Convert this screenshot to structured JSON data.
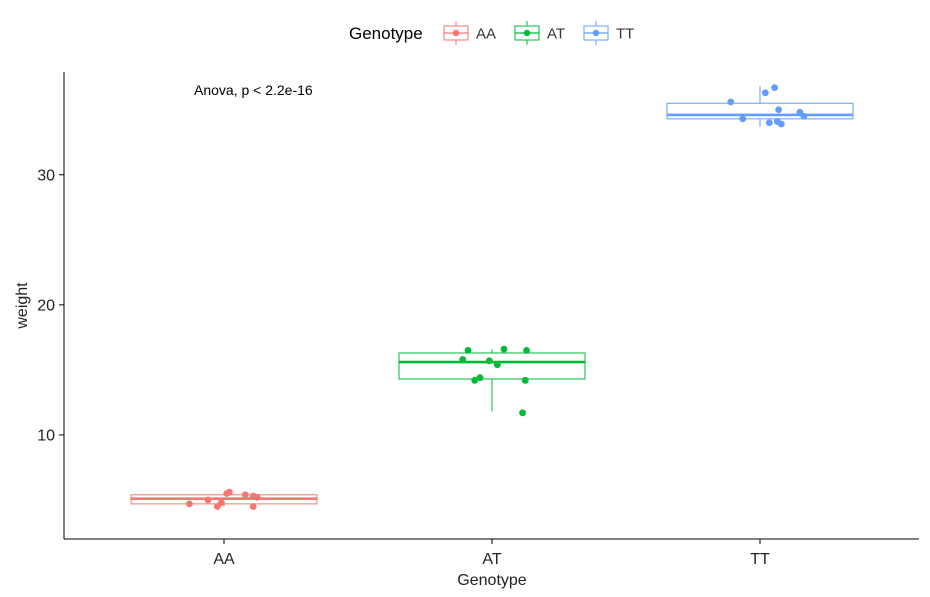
{
  "chart_data": {
    "type": "box",
    "xlabel": "Genotype",
    "ylabel": "weight",
    "categories": [
      "AA",
      "AT",
      "TT"
    ],
    "ylim": [
      2.0,
      37.9
    ],
    "yticks": [
      10,
      20,
      30
    ],
    "ytick_labels": [
      "10",
      "20",
      "30"
    ],
    "grid": false,
    "legend": {
      "title": "Genotype",
      "position": "top"
    },
    "annotation": "Anova, p < 2.2e-16",
    "series": [
      {
        "name": "AA",
        "color": "#F8766D",
        "box": {
          "min": 4.5,
          "q1": 4.7,
          "median": 5.1,
          "q3": 5.4,
          "max": 5.6
        },
        "points": [
          {
            "x": -0.26,
            "y": 4.7
          },
          {
            "x": -0.12,
            "y": 5.0
          },
          {
            "x": -0.05,
            "y": 4.5
          },
          {
            "x": -0.02,
            "y": 4.8
          },
          {
            "x": 0.02,
            "y": 5.5
          },
          {
            "x": 0.04,
            "y": 5.6
          },
          {
            "x": 0.16,
            "y": 5.4
          },
          {
            "x": 0.22,
            "y": 4.5
          },
          {
            "x": 0.22,
            "y": 5.3
          },
          {
            "x": 0.25,
            "y": 5.2
          }
        ]
      },
      {
        "name": "AT",
        "color": "#00BA38",
        "box": {
          "min": 11.8,
          "q1": 14.3,
          "median": 15.6,
          "q3": 16.3,
          "max": 16.6
        },
        "points": [
          {
            "x": -0.22,
            "y": 15.8
          },
          {
            "x": -0.18,
            "y": 16.5
          },
          {
            "x": -0.13,
            "y": 14.2
          },
          {
            "x": -0.09,
            "y": 14.4
          },
          {
            "x": -0.02,
            "y": 15.7
          },
          {
            "x": 0.04,
            "y": 15.4
          },
          {
            "x": 0.09,
            "y": 16.6
          },
          {
            "x": 0.23,
            "y": 11.7
          },
          {
            "x": 0.25,
            "y": 14.2
          },
          {
            "x": 0.26,
            "y": 16.5
          }
        ]
      },
      {
        "name": "TT",
        "color": "#619CFF",
        "box": {
          "min": 33.7,
          "q1": 34.3,
          "median": 34.6,
          "q3": 35.5,
          "max": 36.8
        },
        "points": [
          {
            "x": -0.22,
            "y": 35.6
          },
          {
            "x": -0.13,
            "y": 34.3
          },
          {
            "x": 0.04,
            "y": 36.3
          },
          {
            "x": 0.07,
            "y": 34.0
          },
          {
            "x": 0.11,
            "y": 36.7
          },
          {
            "x": 0.13,
            "y": 34.1
          },
          {
            "x": 0.14,
            "y": 35.0
          },
          {
            "x": 0.16,
            "y": 33.9
          },
          {
            "x": 0.3,
            "y": 34.8
          },
          {
            "x": 0.33,
            "y": 34.5
          }
        ]
      }
    ]
  }
}
